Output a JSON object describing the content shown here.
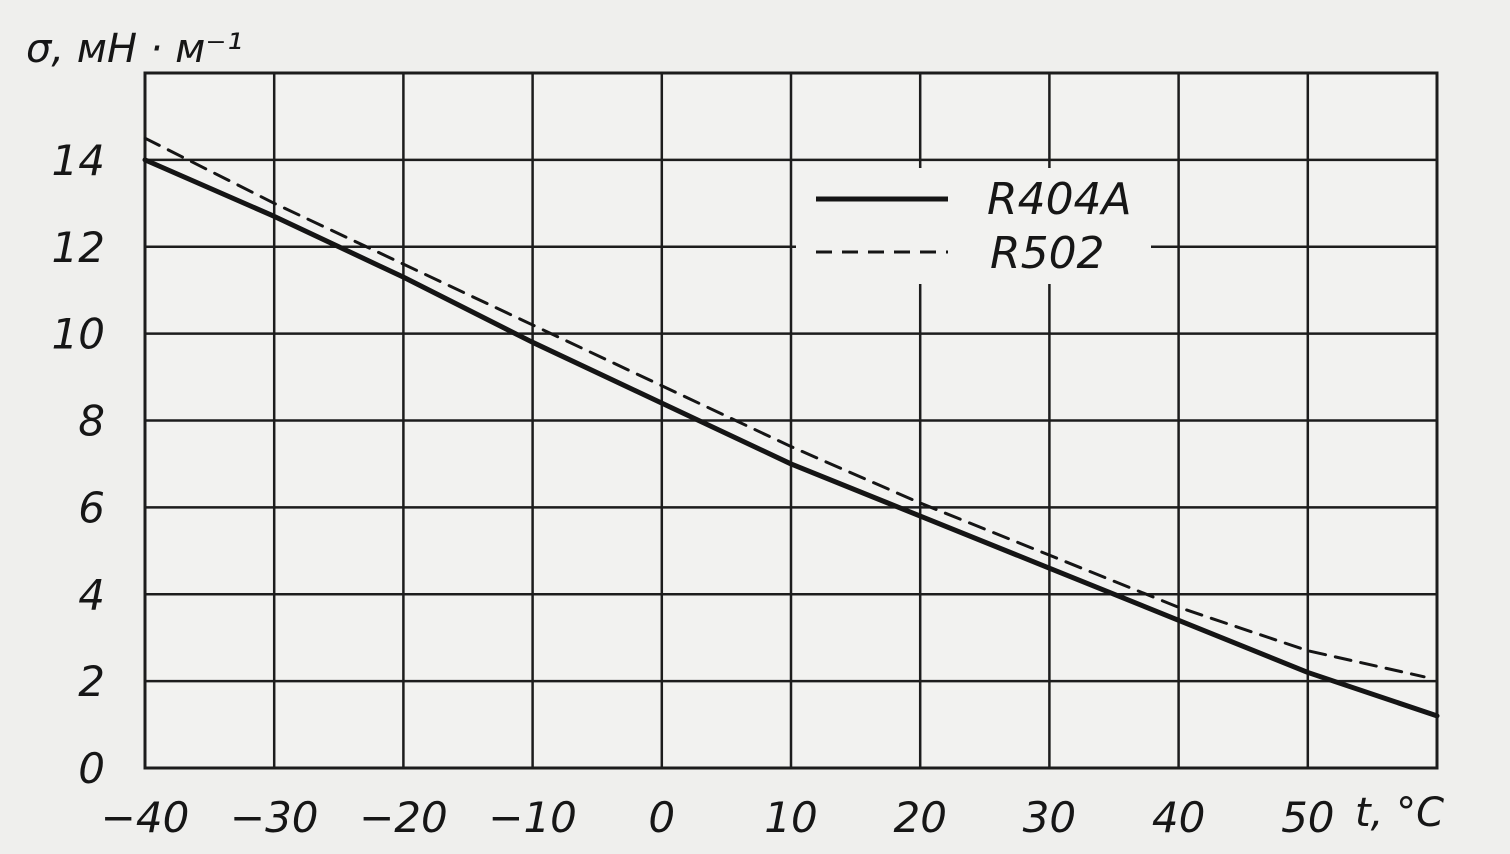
{
  "chart_data": {
    "type": "line",
    "title": "",
    "xlabel": "t, °C",
    "ylabel": "σ, мН · м⁻¹",
    "x_ticks": [
      "−40",
      "−30",
      "−20",
      "−10",
      "0",
      "10",
      "20",
      "30",
      "40",
      "50"
    ],
    "y_ticks": [
      "0",
      "2",
      "4",
      "6",
      "8",
      "10",
      "12",
      "14"
    ],
    "xlim": [
      -40,
      60
    ],
    "ylim": [
      0,
      16
    ],
    "grid": true,
    "legend_position": "top-right",
    "series": [
      {
        "name": "R404A",
        "style": "solid",
        "color": "#151515",
        "x": [
          -40,
          -30,
          -20,
          -10,
          0,
          10,
          20,
          30,
          40,
          50,
          60
        ],
        "y": [
          14.0,
          12.7,
          11.3,
          9.8,
          8.4,
          7.0,
          5.8,
          4.6,
          3.4,
          2.2,
          1.2
        ]
      },
      {
        "name": "R502",
        "style": "dashed",
        "color": "#151515",
        "x": [
          -40,
          -30,
          -20,
          -10,
          0,
          10,
          20,
          30,
          40,
          50,
          59
        ],
        "y": [
          14.5,
          13.0,
          11.6,
          10.2,
          8.8,
          7.4,
          6.1,
          4.9,
          3.7,
          2.7,
          2.1
        ]
      }
    ]
  }
}
